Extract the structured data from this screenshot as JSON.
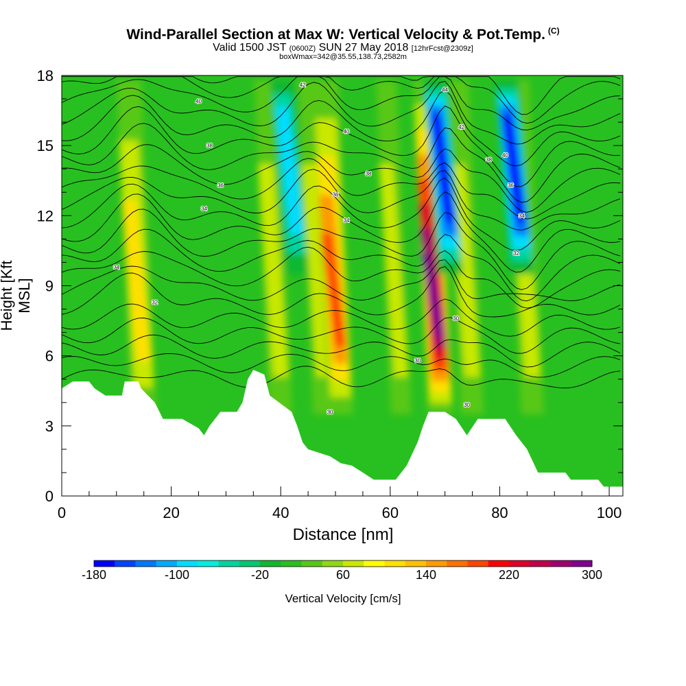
{
  "chart_data": {
    "type": "heatmap",
    "title": "Wind-Parallel Section at Max W: Vertical Velocity & Pot.Temp.",
    "title_mark": "(C)",
    "subtitle_main_a": "Valid 1500 JST",
    "subtitle_small_a": "(0600Z)",
    "subtitle_main_b": "SUN 27 May 2018",
    "subtitle_small_b": "[12hrFcst@2309z]",
    "subtitle2": "boxWmax=342@35.55,138.73,2582m",
    "xlabel": "Distance [nm]",
    "ylabel": "Height [Kft MSL]",
    "xlim": [
      0,
      102.5
    ],
    "ylim": [
      0,
      18
    ],
    "x_ticks": [
      "0",
      "20",
      "40",
      "60",
      "80",
      "100"
    ],
    "x_tick_values": [
      0,
      20,
      40,
      60,
      80,
      100
    ],
    "y_ticks": [
      "0",
      "3",
      "6",
      "9",
      "12",
      "15",
      "18"
    ],
    "y_tick_values": [
      0,
      3,
      6,
      9,
      12,
      15,
      18
    ],
    "colorbar": {
      "label": "Vertical Velocity [cm/s]",
      "tick_labels": [
        "-180",
        "-100",
        "-20",
        "60",
        "140",
        "220",
        "300"
      ],
      "tick_values": [
        -180,
        -100,
        -20,
        60,
        140,
        220,
        300
      ],
      "levels": [
        -180,
        -160,
        -140,
        -120,
        -100,
        -80,
        -60,
        -40,
        -20,
        0,
        20,
        40,
        60,
        80,
        100,
        120,
        140,
        160,
        180,
        200,
        220,
        240,
        260,
        280,
        300
      ],
      "colors": [
        "#0000ff",
        "#0044ff",
        "#0077ff",
        "#00aaff",
        "#00ddff",
        "#00eedd",
        "#00d4a0",
        "#00c870",
        "#10b830",
        "#28c020",
        "#58c818",
        "#90d810",
        "#c8e800",
        "#ffff00",
        "#ffe000",
        "#ffc000",
        "#ff9a00",
        "#ff7000",
        "#ff4400",
        "#ff0000",
        "#e00028",
        "#c0004c",
        "#a00070",
        "#800090"
      ]
    },
    "background_level": "#28c020",
    "updraft_columns": [
      {
        "x": 15,
        "w_max": 110
      },
      {
        "x": 40,
        "w_max": 90
      },
      {
        "x": 48,
        "w_max": 90
      },
      {
        "x": 51,
        "w_max": 190
      },
      {
        "x": 62,
        "w_max": 70
      },
      {
        "x": 69.2,
        "w_max": 342
      },
      {
        "x": 75,
        "w_max": 90
      },
      {
        "x": 86,
        "w_max": 90
      }
    ],
    "downdraft_columns": [
      {
        "x": 43,
        "w_min": -100
      },
      {
        "x": 71,
        "w_min": -180
      },
      {
        "x": 84,
        "w_min": -180
      }
    ],
    "terrain_profile_kft": [
      {
        "x": 0,
        "y": 4.6
      },
      {
        "x": 2,
        "y": 4.9
      },
      {
        "x": 5,
        "y": 4.9
      },
      {
        "x": 6,
        "y": 4.6
      },
      {
        "x": 8,
        "y": 4.3
      },
      {
        "x": 11,
        "y": 4.3
      },
      {
        "x": 11.5,
        "y": 4.9
      },
      {
        "x": 14,
        "y": 4.9
      },
      {
        "x": 14.5,
        "y": 4.6
      },
      {
        "x": 17,
        "y": 4.0
      },
      {
        "x": 18.5,
        "y": 3.3
      },
      {
        "x": 22,
        "y": 3.3
      },
      {
        "x": 25,
        "y": 2.9
      },
      {
        "x": 26,
        "y": 2.6
      },
      {
        "x": 27,
        "y": 3.0
      },
      {
        "x": 29,
        "y": 3.6
      },
      {
        "x": 32,
        "y": 3.6
      },
      {
        "x": 33,
        "y": 4.0
      },
      {
        "x": 34,
        "y": 5.0
      },
      {
        "x": 35,
        "y": 5.4
      },
      {
        "x": 37,
        "y": 5.2
      },
      {
        "x": 38,
        "y": 4.3
      },
      {
        "x": 42,
        "y": 3.6
      },
      {
        "x": 43,
        "y": 3.0
      },
      {
        "x": 44,
        "y": 2.3
      },
      {
        "x": 45,
        "y": 2.0
      },
      {
        "x": 49,
        "y": 1.7
      },
      {
        "x": 51,
        "y": 1.4
      },
      {
        "x": 53,
        "y": 1.3
      },
      {
        "x": 55,
        "y": 1.0
      },
      {
        "x": 57,
        "y": 0.7
      },
      {
        "x": 61,
        "y": 0.7
      },
      {
        "x": 63,
        "y": 1.3
      },
      {
        "x": 65,
        "y": 2.3
      },
      {
        "x": 66,
        "y": 3.0
      },
      {
        "x": 67,
        "y": 3.6
      },
      {
        "x": 70,
        "y": 3.6
      },
      {
        "x": 72,
        "y": 3.3
      },
      {
        "x": 74,
        "y": 2.6
      },
      {
        "x": 76,
        "y": 3.3
      },
      {
        "x": 81,
        "y": 3.3
      },
      {
        "x": 83,
        "y": 2.6
      },
      {
        "x": 85,
        "y": 2.0
      },
      {
        "x": 87,
        "y": 1.0
      },
      {
        "x": 92,
        "y": 1.0
      },
      {
        "x": 93,
        "y": 0.7
      },
      {
        "x": 98,
        "y": 0.7
      },
      {
        "x": 99,
        "y": 0.4
      },
      {
        "x": 102.5,
        "y": 0.4
      }
    ],
    "theta_contour_labels": [
      {
        "text": "40",
        "x": 25,
        "y": 16.9
      },
      {
        "text": "38",
        "x": 27,
        "y": 15.0
      },
      {
        "text": "36",
        "x": 29,
        "y": 13.3
      },
      {
        "text": "34",
        "x": 26,
        "y": 12.3
      },
      {
        "text": "34",
        "x": 10,
        "y": 9.8
      },
      {
        "text": "32",
        "x": 17,
        "y": 8.3
      },
      {
        "text": "42",
        "x": 44,
        "y": 17.6
      },
      {
        "text": "40",
        "x": 52,
        "y": 15.6
      },
      {
        "text": "38",
        "x": 56,
        "y": 13.8
      },
      {
        "text": "36",
        "x": 50,
        "y": 12.9
      },
      {
        "text": "34",
        "x": 52,
        "y": 11.8
      },
      {
        "text": "44",
        "x": 70,
        "y": 17.4
      },
      {
        "text": "42",
        "x": 73,
        "y": 15.8
      },
      {
        "text": "38",
        "x": 78,
        "y": 14.4
      },
      {
        "text": "40",
        "x": 81,
        "y": 14.6
      },
      {
        "text": "36",
        "x": 82,
        "y": 13.3
      },
      {
        "text": "34",
        "x": 84,
        "y": 12.0
      },
      {
        "text": "32",
        "x": 83,
        "y": 10.4
      },
      {
        "text": "30",
        "x": 72,
        "y": 7.6
      },
      {
        "text": "30",
        "x": 65,
        "y": 5.8
      },
      {
        "text": "30",
        "x": 49,
        "y": 3.6
      },
      {
        "text": "30",
        "x": 74,
        "y": 3.9
      }
    ]
  }
}
